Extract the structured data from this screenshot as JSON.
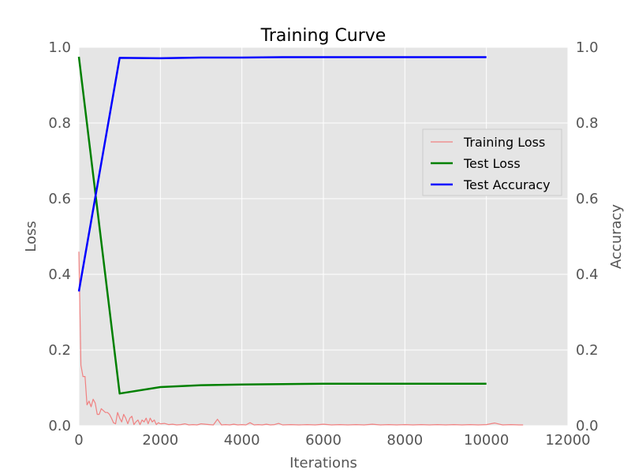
{
  "chart_data": {
    "type": "line",
    "title": "Training Curve",
    "xlabel": "Iterations",
    "ylabel": "Loss",
    "y2label": "Accuracy",
    "xlim": [
      0,
      12000
    ],
    "ylim": [
      0,
      1.0
    ],
    "y2lim": [
      0,
      1.0
    ],
    "x_ticks": [
      "0",
      "2000",
      "4000",
      "6000",
      "8000",
      "10000",
      "12000"
    ],
    "y_ticks": [
      "0.0",
      "0.2",
      "0.4",
      "0.6",
      "0.8",
      "1.0"
    ],
    "y2_ticks": [
      "0.0",
      "0.2",
      "0.4",
      "0.6",
      "0.8",
      "1.0"
    ],
    "grid": true,
    "legend_position": "center-right",
    "series": [
      {
        "name": "Training Loss",
        "axis": "left",
        "color": "#f08080",
        "x": [
          0,
          50,
          100,
          150,
          200,
          250,
          300,
          350,
          400,
          450,
          500,
          550,
          600,
          650,
          700,
          750,
          800,
          850,
          900,
          950,
          1000,
          1050,
          1100,
          1150,
          1200,
          1250,
          1300,
          1350,
          1400,
          1450,
          1500,
          1550,
          1600,
          1650,
          1700,
          1750,
          1800,
          1850,
          1900,
          1950,
          2000,
          2100,
          2200,
          2300,
          2400,
          2500,
          2600,
          2700,
          2800,
          2900,
          3000,
          3100,
          3200,
          3300,
          3400,
          3500,
          3600,
          3700,
          3800,
          3900,
          4000,
          4100,
          4200,
          4300,
          4400,
          4500,
          4600,
          4700,
          4800,
          4900,
          5000,
          5200,
          5400,
          5600,
          5800,
          6000,
          6200,
          6400,
          6600,
          6800,
          7000,
          7200,
          7400,
          7600,
          7800,
          8000,
          8200,
          8400,
          8600,
          8800,
          9000,
          9200,
          9400,
          9600,
          9800,
          10000,
          10200,
          10400,
          10600,
          10800,
          10900
        ],
        "values": [
          0.46,
          0.16,
          0.13,
          0.13,
          0.055,
          0.065,
          0.05,
          0.07,
          0.06,
          0.03,
          0.03,
          0.045,
          0.04,
          0.035,
          0.035,
          0.03,
          0.02,
          0.008,
          0.005,
          0.035,
          0.02,
          0.01,
          0.03,
          0.02,
          0.005,
          0.02,
          0.025,
          0.003,
          0.01,
          0.015,
          0.003,
          0.015,
          0.01,
          0.02,
          0.005,
          0.02,
          0.01,
          0.015,
          0.003,
          0.008,
          0.005,
          0.006,
          0.003,
          0.004,
          0.002,
          0.003,
          0.005,
          0.002,
          0.003,
          0.002,
          0.005,
          0.004,
          0.003,
          0.002,
          0.017,
          0.002,
          0.003,
          0.002,
          0.004,
          0.002,
          0.003,
          0.002,
          0.008,
          0.002,
          0.003,
          0.002,
          0.004,
          0.002,
          0.003,
          0.006,
          0.002,
          0.003,
          0.002,
          0.003,
          0.002,
          0.004,
          0.002,
          0.003,
          0.002,
          0.003,
          0.002,
          0.004,
          0.002,
          0.003,
          0.002,
          0.003,
          0.002,
          0.003,
          0.002,
          0.003,
          0.002,
          0.003,
          0.002,
          0.003,
          0.002,
          0.003,
          0.007,
          0.002,
          0.003,
          0.002,
          0.002
        ]
      },
      {
        "name": "Test Loss",
        "axis": "left",
        "color": "#008000",
        "x": [
          0,
          1000,
          2000,
          3000,
          4000,
          5000,
          6000,
          7000,
          8000,
          9000,
          10000
        ],
        "values": [
          0.975,
          0.085,
          0.102,
          0.107,
          0.109,
          0.11,
          0.111,
          0.111,
          0.111,
          0.111,
          0.111
        ]
      },
      {
        "name": "Test Accuracy",
        "axis": "right",
        "color": "#0000ff",
        "x": [
          0,
          1000,
          2000,
          3000,
          4000,
          5000,
          6000,
          7000,
          8000,
          9000,
          10000
        ],
        "values": [
          0.355,
          0.972,
          0.971,
          0.973,
          0.973,
          0.974,
          0.974,
          0.974,
          0.974,
          0.974,
          0.974
        ]
      }
    ]
  }
}
